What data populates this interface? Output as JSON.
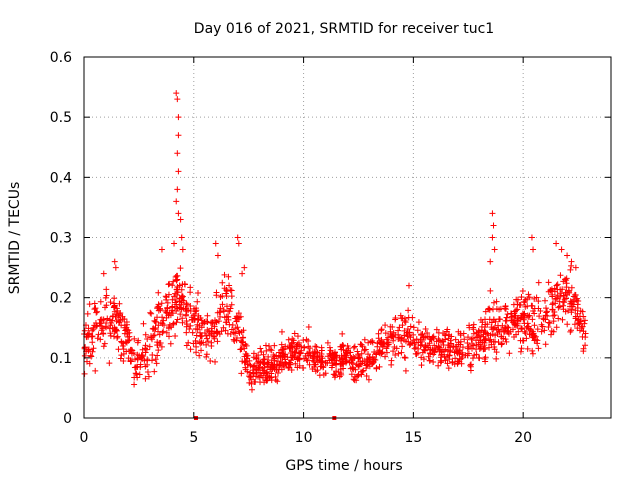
{
  "chart_data": {
    "type": "scatter",
    "title": "Day 016 of 2021, SRMTID for receiver tuc1",
    "xlabel": "GPS time / hours",
    "ylabel": "SRMTID / TECUs",
    "xlim": [
      0,
      24
    ],
    "ylim": [
      0,
      0.6
    ],
    "xticks": [
      0,
      5,
      10,
      15,
      20
    ],
    "yticks": [
      0,
      0.1,
      0.2,
      0.3,
      0.4,
      0.5,
      0.6
    ],
    "xtick_labels": [
      "0",
      "5",
      "10",
      "15",
      "20"
    ],
    "ytick_labels": [
      "0",
      "0.1",
      "0.2",
      "0.3",
      "0.4",
      "0.5",
      "0.6"
    ],
    "grid": true,
    "marker": "+",
    "color": "#ff0000",
    "series": [
      {
        "name": "SRMTID",
        "baseline_profile": [
          [
            0.0,
            0.13,
            0.05
          ],
          [
            0.5,
            0.14,
            0.05
          ],
          [
            1.0,
            0.16,
            0.05
          ],
          [
            1.5,
            0.17,
            0.05
          ],
          [
            2.0,
            0.12,
            0.04
          ],
          [
            2.5,
            0.09,
            0.04
          ],
          [
            3.0,
            0.12,
            0.05
          ],
          [
            3.5,
            0.16,
            0.05
          ],
          [
            4.0,
            0.19,
            0.05
          ],
          [
            4.5,
            0.2,
            0.05
          ],
          [
            5.0,
            0.15,
            0.05
          ],
          [
            5.5,
            0.13,
            0.04
          ],
          [
            6.0,
            0.16,
            0.05
          ],
          [
            6.5,
            0.18,
            0.05
          ],
          [
            7.0,
            0.16,
            0.05
          ],
          [
            7.5,
            0.08,
            0.03
          ],
          [
            8.0,
            0.08,
            0.03
          ],
          [
            8.5,
            0.09,
            0.03
          ],
          [
            9.0,
            0.1,
            0.03
          ],
          [
            9.5,
            0.11,
            0.03
          ],
          [
            10.0,
            0.11,
            0.03
          ],
          [
            10.5,
            0.1,
            0.03
          ],
          [
            11.0,
            0.09,
            0.03
          ],
          [
            11.5,
            0.1,
            0.03
          ],
          [
            12.0,
            0.1,
            0.03
          ],
          [
            12.5,
            0.09,
            0.03
          ],
          [
            13.0,
            0.1,
            0.03
          ],
          [
            13.5,
            0.12,
            0.03
          ],
          [
            14.0,
            0.13,
            0.04
          ],
          [
            14.5,
            0.14,
            0.04
          ],
          [
            15.0,
            0.13,
            0.04
          ],
          [
            15.5,
            0.12,
            0.03
          ],
          [
            16.0,
            0.12,
            0.03
          ],
          [
            16.5,
            0.12,
            0.03
          ],
          [
            17.0,
            0.11,
            0.03
          ],
          [
            17.5,
            0.12,
            0.03
          ],
          [
            18.0,
            0.13,
            0.04
          ],
          [
            18.5,
            0.15,
            0.05
          ],
          [
            19.0,
            0.15,
            0.04
          ],
          [
            19.5,
            0.16,
            0.04
          ],
          [
            20.0,
            0.16,
            0.04
          ],
          [
            20.5,
            0.15,
            0.05
          ],
          [
            21.0,
            0.16,
            0.05
          ],
          [
            21.5,
            0.19,
            0.05
          ],
          [
            22.0,
            0.2,
            0.05
          ],
          [
            22.5,
            0.17,
            0.04
          ],
          [
            22.8,
            0.14,
            0.03
          ]
        ],
        "spikes": [
          [
            4.2,
            0.54
          ],
          [
            4.25,
            0.53
          ],
          [
            4.3,
            0.5
          ],
          [
            4.3,
            0.47
          ],
          [
            4.25,
            0.44
          ],
          [
            4.3,
            0.41
          ],
          [
            4.25,
            0.38
          ],
          [
            4.2,
            0.36
          ],
          [
            4.3,
            0.34
          ],
          [
            4.4,
            0.33
          ],
          [
            4.45,
            0.3
          ],
          [
            4.5,
            0.28
          ],
          [
            4.1,
            0.29
          ],
          [
            3.55,
            0.28
          ],
          [
            7.0,
            0.3
          ],
          [
            7.05,
            0.29
          ],
          [
            6.0,
            0.29
          ],
          [
            6.1,
            0.27
          ],
          [
            18.6,
            0.34
          ],
          [
            18.65,
            0.32
          ],
          [
            18.6,
            0.3
          ],
          [
            18.7,
            0.28
          ],
          [
            18.5,
            0.26
          ],
          [
            20.4,
            0.3
          ],
          [
            20.45,
            0.28
          ],
          [
            21.5,
            0.29
          ],
          [
            21.75,
            0.28
          ],
          [
            22.0,
            0.27
          ],
          [
            22.2,
            0.26
          ],
          [
            22.4,
            0.25
          ],
          [
            1.4,
            0.26
          ],
          [
            1.45,
            0.25
          ],
          [
            0.9,
            0.24
          ],
          [
            7.3,
            0.25
          ],
          [
            7.2,
            0.24
          ],
          [
            14.8,
            0.22
          ]
        ],
        "zeros": [
          [
            5.1,
            0.0
          ],
          [
            11.4,
            0.0
          ]
        ],
        "point_count": 1600,
        "x_range": [
          0,
          22.85
        ]
      }
    ]
  }
}
